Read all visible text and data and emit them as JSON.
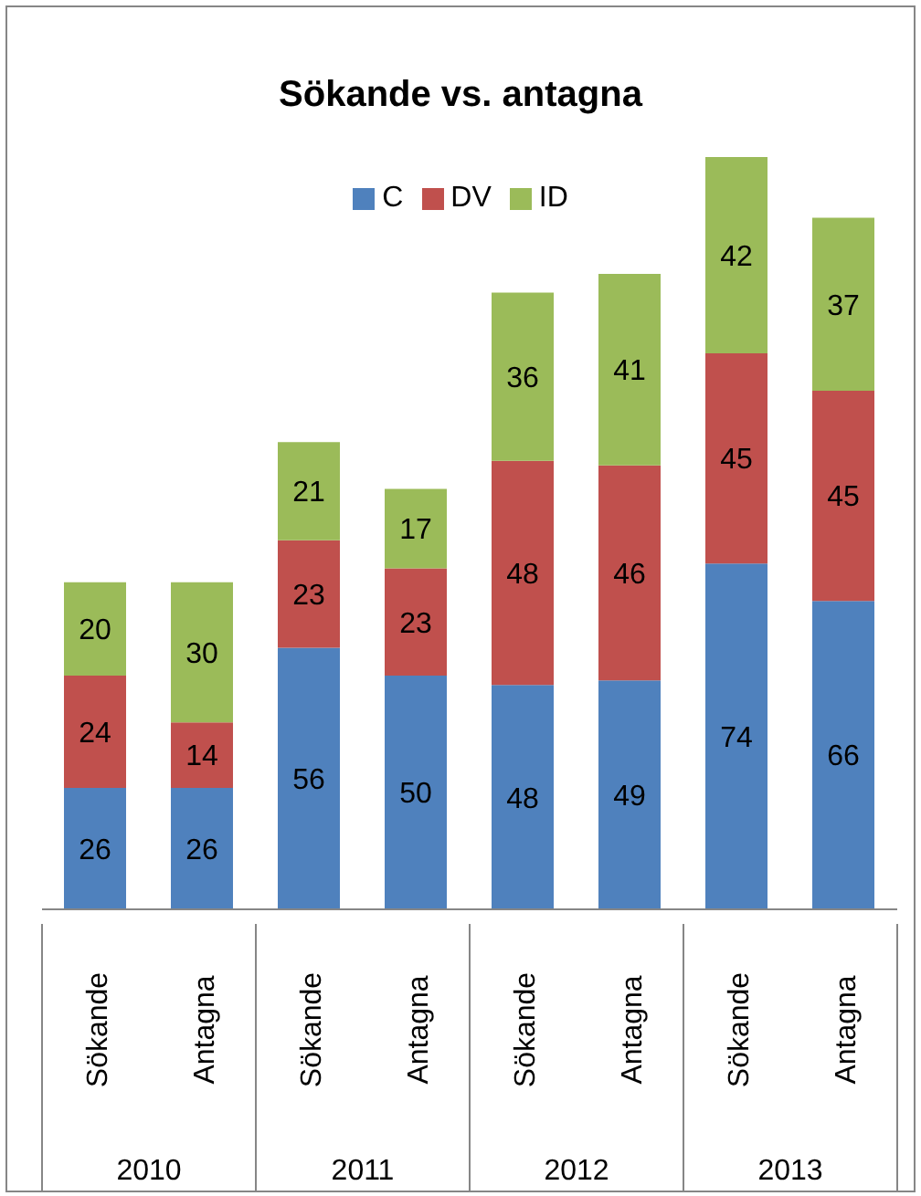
{
  "chart_data": {
    "type": "bar",
    "title": "Sökande vs. antagna",
    "categories": [
      "Sökande",
      "Antagna",
      "Sökande",
      "Antagna",
      "Sökande",
      "Antagna",
      "Sökande",
      "Antagna"
    ],
    "series": [
      {
        "name": "C",
        "color": "#4f81bd",
        "values": [
          26,
          26,
          56,
          50,
          48,
          49,
          74,
          66
        ]
      },
      {
        "name": "DV",
        "color": "#c0504d",
        "values": [
          24,
          14,
          23,
          23,
          48,
          46,
          45,
          45
        ]
      },
      {
        "name": "ID",
        "color": "#9bbb59",
        "values": [
          20,
          30,
          21,
          17,
          36,
          41,
          42,
          37
        ]
      }
    ],
    "stacked": true,
    "data_labels": true,
    "legend": "top",
    "annotations": [
      "2010",
      "2011",
      "2012",
      "2013"
    ]
  }
}
